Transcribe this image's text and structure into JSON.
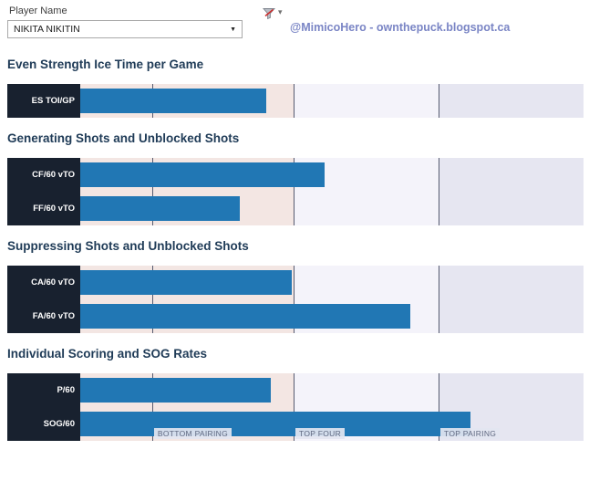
{
  "header": {
    "filter_label": "Player Name",
    "player": "NIKITA NIKITIN",
    "attribution": "@MimicoHero - ownthepuck.blogspot.ca",
    "dropdown_arrow_glyph": "▼",
    "filter_caret_glyph": "▾"
  },
  "axis": {
    "note": "x-axis has no numeric tick labels; values below are percent of full axis width estimated from pixels",
    "gridlines_pct": [
      14.3,
      42.4,
      71.2
    ],
    "bands": [
      {
        "color_key": "band_low",
        "from_pct": 0,
        "to_pct": 42.4
      },
      {
        "color_key": "band_mid",
        "from_pct": 42.4,
        "to_pct": 71.2
      },
      {
        "color_key": "band_high",
        "from_pct": 71.2,
        "to_pct": 100
      }
    ],
    "band_labels": [
      {
        "text": "BOTTOM PAIRING",
        "left_pct": 14.3
      },
      {
        "text": "TOP FOUR",
        "left_pct": 42.4
      },
      {
        "text": "TOP PAIRING",
        "left_pct": 71.2
      }
    ]
  },
  "chart_data": [
    {
      "type": "bar",
      "orientation": "horizontal",
      "title": "Even Strength Ice Time per Game",
      "categories": [
        "ES TOI/GP"
      ],
      "values": [
        37.0
      ],
      "value_units": "percent_of_axis",
      "xlim": [
        0,
        100
      ],
      "x_tick_labels": []
    },
    {
      "type": "bar",
      "orientation": "horizontal",
      "title": "Generating Shots and Unblocked Shots",
      "categories": [
        "CF/60 vTO",
        "FF/60 vTO"
      ],
      "values": [
        48.6,
        31.7
      ],
      "value_units": "percent_of_axis",
      "xlim": [
        0,
        100
      ],
      "x_tick_labels": []
    },
    {
      "type": "bar",
      "orientation": "horizontal",
      "title": "Suppressing Shots and Unblocked Shots",
      "categories": [
        "CA/60 vTO",
        "FA/60 vTO"
      ],
      "values": [
        42.0,
        65.6
      ],
      "value_units": "percent_of_axis",
      "xlim": [
        0,
        100
      ],
      "x_tick_labels": []
    },
    {
      "type": "bar",
      "orientation": "horizontal",
      "title": "Individual Scoring and SOG Rates",
      "categories": [
        "P/60",
        "SOG/60"
      ],
      "values": [
        37.9,
        77.5
      ],
      "value_units": "percent_of_axis",
      "xlim": [
        0,
        100
      ],
      "x_tick_labels": []
    }
  ],
  "colors": {
    "bar": "#2177b4",
    "label_box": "#18212f",
    "band_low": "#f3e6e3",
    "band_mid": "#f4f3fa",
    "band_high": "#e6e6f1",
    "gridline": "#565b70",
    "header_text": "#1f3b57",
    "attribution_text": "#7a85c5"
  }
}
